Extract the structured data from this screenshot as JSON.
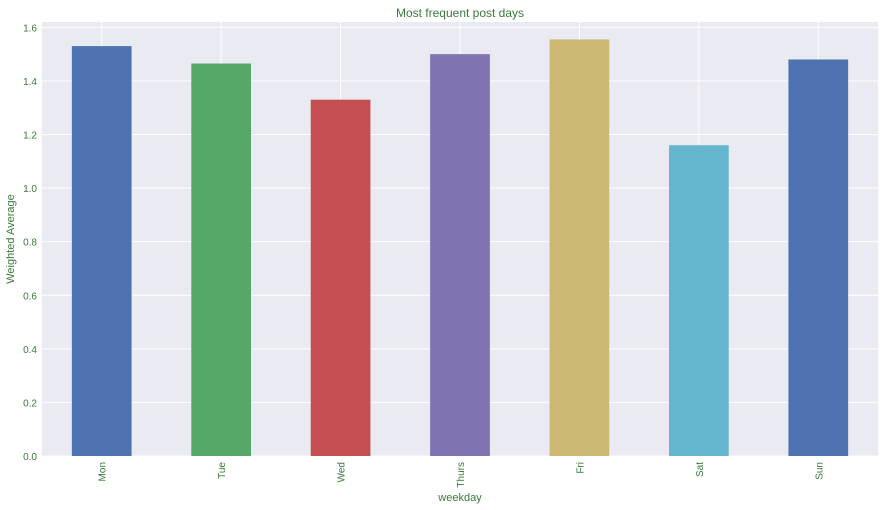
{
  "chart_data": {
    "type": "bar",
    "title": "Most frequent post days",
    "xlabel": "weekday",
    "ylabel": "Weighted Average",
    "categories": [
      "Mon",
      "Tue",
      "Wed",
      "Thurs",
      "Fri",
      "Sat",
      "Sun"
    ],
    "values": [
      1.53,
      1.465,
      1.33,
      1.5,
      1.555,
      1.16,
      1.48
    ],
    "ylim": [
      0,
      1.62
    ],
    "yticks": [
      0.0,
      0.2,
      0.4,
      0.6,
      0.8,
      1.0,
      1.2,
      1.4,
      1.6
    ],
    "ytick_labels": [
      "0.0",
      "0.2",
      "0.4",
      "0.6",
      "0.8",
      "1.0",
      "1.2",
      "1.4",
      "1.6"
    ],
    "grid": true,
    "colors": [
      "#4c72b0",
      "#55a868",
      "#c44e52",
      "#8172b2",
      "#ccb974",
      "#64b5cd",
      "#4c72b0"
    ],
    "background_color": "#eaeaf2",
    "text_color": "#3a7a3a"
  }
}
